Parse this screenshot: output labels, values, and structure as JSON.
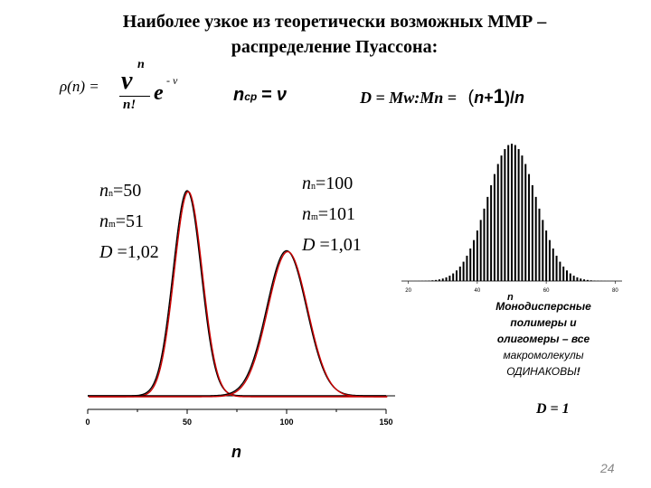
{
  "title": {
    "line1": "Наиболее узкое из теоретически возможных ММР –",
    "line2": "распределение Пуассона:"
  },
  "formulas": {
    "poisson": {
      "lhs": "ρ(n) =",
      "numerator": "ν",
      "power": "n",
      "denominator": "n!",
      "exp_base": "e",
      "exp_power": "- ν"
    },
    "n_avg": {
      "symbol": "n",
      "sub": "ср",
      "eq": "= ν"
    },
    "dispersity": {
      "lhs": "D = Mw:Mn =",
      "rhs_open": "(",
      "rhs_n": "n",
      "rhs_plus": "+",
      "rhs_one": "1",
      "rhs_close": ")/",
      "rhs_den": "n"
    }
  },
  "annotations": {
    "left": {
      "line1": {
        "sym": "n",
        "sub": "n",
        "val": "=50"
      },
      "line2": {
        "sym": "n",
        "sub": "m",
        "val": "=51"
      },
      "line3": {
        "sym": "D",
        "val": "=1,02"
      }
    },
    "right": {
      "line1": {
        "sym": "n",
        "sub": "n",
        "val": "=100"
      },
      "line2": {
        "sym": "n",
        "sub": "m",
        "val": "=101"
      },
      "line3": {
        "sym": "D",
        "val": "=1,01"
      }
    }
  },
  "chart_data": [
    {
      "type": "line",
      "xlabel": "n",
      "xlim": [
        0,
        150
      ],
      "x_ticks": [
        "0",
        "50",
        "100",
        "150"
      ],
      "series": [
        {
          "mean": 50,
          "variance": 50,
          "colors": [
            "#000000",
            "#cc0000"
          ]
        },
        {
          "mean": 100,
          "variance": 100,
          "colors": [
            "#000000",
            "#cc0000"
          ]
        }
      ]
    },
    {
      "type": "bar",
      "xlabel": "n",
      "xlim": [
        18,
        82
      ],
      "x_ticks": [
        "20",
        "40",
        "60",
        "80"
      ],
      "mean": 50,
      "variance": 50,
      "n_start": 21,
      "n_end": 79,
      "color": "#000000"
    }
  ],
  "note": {
    "line1": "Монодисперсные",
    "line2": "полимеры и",
    "line3": "олигомеры – все",
    "line4": "макромолекулы",
    "line5": "ОДИНАКОВЫ",
    "line5_end": "!"
  },
  "d_one": "D = 1",
  "page_number": "24"
}
